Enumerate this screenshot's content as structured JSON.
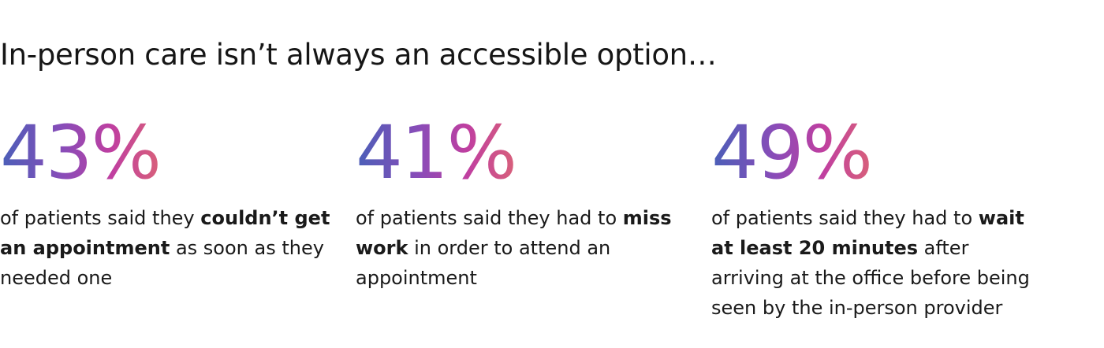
{
  "headline": "In-person care isn’t always an accessible option…",
  "stats": [
    {
      "number": "43%",
      "desc_before": "of patients said they ",
      "desc_bold": "couldn’t get an appointment",
      "desc_after": " as soon as they needed one"
    },
    {
      "number": "41%",
      "desc_before": "of patients said they had to ",
      "desc_bold": "miss work",
      "desc_after": " in order to attend an appointment"
    },
    {
      "number": "49%",
      "desc_before": "of patients said they had to ",
      "desc_bold": "wait at least 20 minutes",
      "desc_after": " after arriving at the office before being seen by the in-person provider"
    }
  ],
  "colors": {
    "gradient_start": "#4a5fb8",
    "gradient_mid": "#c03fa0",
    "gradient_end": "#d8607a",
    "text": "#1a1a1a"
  }
}
